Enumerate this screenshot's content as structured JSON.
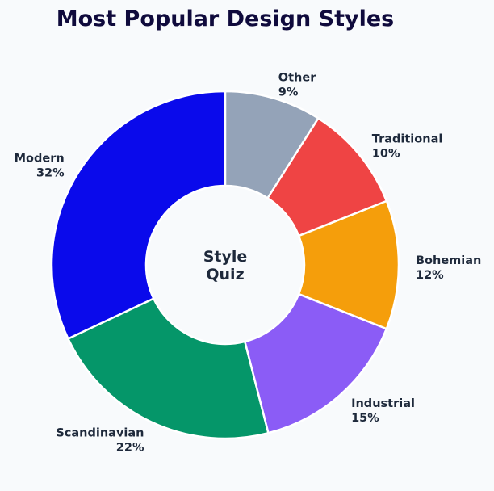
{
  "chart_data": {
    "type": "pie",
    "title": "Most Popular Design Styles",
    "center_label": [
      "Style",
      "Quiz"
    ],
    "slices": [
      {
        "label": "Modern",
        "value": 32,
        "percent": "32%",
        "color": "#0a0aeb"
      },
      {
        "label": "Scandinavian",
        "value": 22,
        "percent": "22%",
        "color": "#059669"
      },
      {
        "label": "Industrial",
        "value": 15,
        "percent": "15%",
        "color": "#8b5cf6"
      },
      {
        "label": "Bohemian",
        "value": 12,
        "percent": "12%",
        "color": "#f59e0b"
      },
      {
        "label": "Traditional",
        "value": 10,
        "percent": "10%",
        "color": "#ef4444"
      },
      {
        "label": "Other",
        "value": 9,
        "percent": "9%",
        "color": "#94a3b8"
      }
    ]
  }
}
